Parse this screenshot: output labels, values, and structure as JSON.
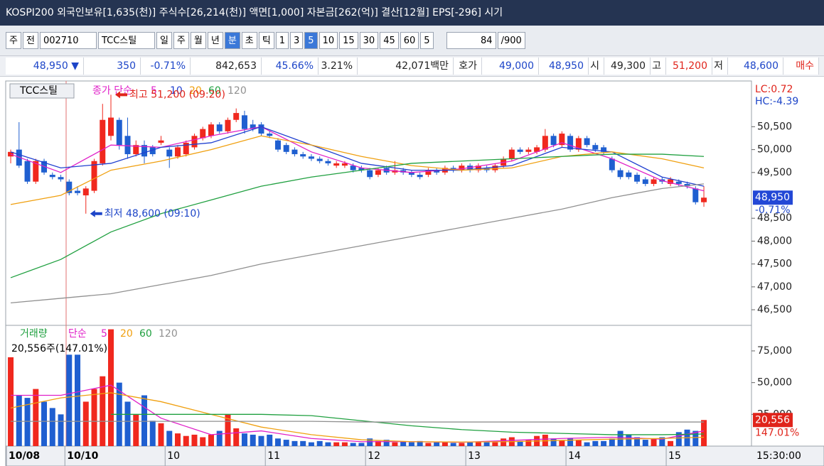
{
  "header": {
    "title": "KOSPI200 외국인보유[1,635(천)] 주식수[26,214(천)] 액면[1,000] 자본금[262(억)] 결산[12월] EPS[-296] 시기",
    "toolbar": [
      "주",
      "전",
      "002710",
      "TCC스틸",
      "일",
      "주",
      "월",
      "년",
      "분",
      "초",
      "틱",
      "1",
      "3",
      "5",
      "10",
      "15",
      "30",
      "45",
      "60",
      "5",
      "84",
      "/900"
    ],
    "toolbar_active": [
      8,
      13
    ],
    "info": [
      {
        "text": "48,950 ▼",
        "color": "#1d45c8"
      },
      {
        "text": "350",
        "color": "#1d45c8"
      },
      {
        "text": "-0.71%",
        "color": "#1d45c8"
      },
      {
        "text": "842,653",
        "color": "#222222"
      },
      {
        "text": "45.66%",
        "color": "#1d45c8"
      },
      {
        "text": "3.21%",
        "color": "#222222"
      },
      {
        "text": "42,071백만",
        "color": "#222222"
      },
      {
        "text": "호가",
        "color": "#222222"
      },
      {
        "text": "49,000",
        "color": "#1d45c8"
      },
      {
        "text": "48,950",
        "color": "#1d45c8"
      },
      {
        "text": "시",
        "color": "#222222"
      },
      {
        "text": "49,300",
        "color": "#222222"
      },
      {
        "text": "고",
        "color": "#222222"
      },
      {
        "text": "51,200",
        "color": "#e0241b"
      },
      {
        "text": "저",
        "color": "#222222"
      },
      {
        "text": "48,600",
        "color": "#1d45c8"
      },
      {
        "text": "매수",
        "color": "#e0241b"
      }
    ]
  },
  "chart_data": {
    "type": "candlestick",
    "title": "TCC스틸",
    "price_legend_label": "종가 단순",
    "volume_title": "거래량",
    "volume_legend_label": "단순",
    "up_color": "#f0281e",
    "down_color": "#1f5fd0",
    "xlim": [
      -0.6,
      88.7
    ],
    "xticks": [
      {
        "value": 0,
        "label": "10/08"
      },
      {
        "value": 7,
        "label": "10/10"
      },
      {
        "value": 19,
        "label": "10"
      },
      {
        "value": 31,
        "label": "11"
      },
      {
        "value": 43,
        "label": "12"
      },
      {
        "value": 55,
        "label": "13"
      },
      {
        "value": 67,
        "label": "14"
      },
      {
        "value": 79,
        "label": "15"
      }
    ],
    "ylim": [
      46190,
      51500
    ],
    "yticks": [
      {
        "value": 50500,
        "label": "50,500"
      },
      {
        "value": 50000,
        "label": "50,000"
      },
      {
        "value": 49500,
        "label": "49,500"
      },
      {
        "value": 48500,
        "label": "48,500"
      },
      {
        "value": 48000,
        "label": "48,000"
      },
      {
        "value": 47500,
        "label": "47,500"
      },
      {
        "value": 47000,
        "label": "47,000"
      },
      {
        "value": 46500,
        "label": "46,500"
      }
    ],
    "candles": [
      [
        49850,
        50000,
        49700,
        49950
      ],
      [
        50000,
        50600,
        49600,
        49650
      ],
      [
        49750,
        49800,
        49250,
        49300
      ],
      [
        49300,
        49800,
        49250,
        49750
      ],
      [
        49750,
        49800,
        49450,
        49500
      ],
      [
        49450,
        49500,
        49350,
        49400
      ],
      [
        49400,
        49450,
        49300,
        49350
      ],
      [
        49300,
        49350,
        49000,
        49050
      ],
      [
        49100,
        49200,
        49000,
        49050
      ],
      [
        49000,
        49200,
        48600,
        49150
      ],
      [
        49100,
        49800,
        49050,
        49750
      ],
      [
        49700,
        51000,
        49650,
        50650
      ],
      [
        50300,
        51200,
        50200,
        50700
      ],
      [
        50650,
        50700,
        50000,
        50100
      ],
      [
        50300,
        50700,
        49800,
        49900
      ],
      [
        49900,
        50200,
        49850,
        50100
      ],
      [
        50100,
        50200,
        49700,
        49850
      ],
      [
        50050,
        50100,
        49850,
        49900
      ],
      [
        50150,
        50300,
        50100,
        50200
      ],
      [
        50000,
        50050,
        49600,
        49850
      ],
      [
        49850,
        50100,
        49800,
        50050
      ],
      [
        49900,
        50200,
        49850,
        50150
      ],
      [
        50050,
        50350,
        50000,
        50300
      ],
      [
        50250,
        50500,
        50200,
        50450
      ],
      [
        50300,
        50600,
        50250,
        50550
      ],
      [
        50550,
        50600,
        50350,
        50400
      ],
      [
        50400,
        50700,
        50350,
        50650
      ],
      [
        50650,
        50900,
        50600,
        50800
      ],
      [
        50750,
        50850,
        50350,
        50450
      ],
      [
        50550,
        50650,
        50400,
        50450
      ],
      [
        50550,
        50600,
        50300,
        50350
      ],
      [
        50350,
        50400,
        50250,
        50300
      ],
      [
        50200,
        50250,
        49950,
        50000
      ],
      [
        50100,
        50150,
        49900,
        49950
      ],
      [
        50000,
        50050,
        49850,
        49900
      ],
      [
        49900,
        49950,
        49800,
        49850
      ],
      [
        49850,
        49900,
        49750,
        49800
      ],
      [
        49800,
        49850,
        49700,
        49750
      ],
      [
        49750,
        49800,
        49650,
        49700
      ],
      [
        49650,
        49750,
        49600,
        49700
      ],
      [
        49650,
        49750,
        49600,
        49700
      ],
      [
        49650,
        49700,
        49500,
        49550
      ],
      [
        49600,
        49650,
        49500,
        49550
      ],
      [
        49550,
        49600,
        49350,
        49400
      ],
      [
        49450,
        49600,
        49400,
        49550
      ],
      [
        49600,
        49650,
        49450,
        49500
      ],
      [
        49500,
        49750,
        49450,
        49550
      ],
      [
        49550,
        49600,
        49450,
        49500
      ],
      [
        49500,
        49550,
        49400,
        49450
      ],
      [
        49450,
        49500,
        49350,
        49400
      ],
      [
        49450,
        49600,
        49400,
        49550
      ],
      [
        49550,
        49600,
        49450,
        49500
      ],
      [
        49500,
        49650,
        49450,
        49600
      ],
      [
        49600,
        49650,
        49500,
        49550
      ],
      [
        49550,
        49700,
        49500,
        49650
      ],
      [
        49650,
        49700,
        49500,
        49550
      ],
      [
        49550,
        49700,
        49500,
        49650
      ],
      [
        49600,
        49650,
        49500,
        49550
      ],
      [
        49550,
        49700,
        49500,
        49650
      ],
      [
        49650,
        49850,
        49600,
        49800
      ],
      [
        49800,
        50050,
        49750,
        50000
      ],
      [
        50000,
        50050,
        49900,
        49950
      ],
      [
        49950,
        50050,
        49900,
        50000
      ],
      [
        49950,
        50100,
        49900,
        50050
      ],
      [
        50000,
        50450,
        49950,
        50300
      ],
      [
        50300,
        50350,
        50050,
        50100
      ],
      [
        50100,
        50400,
        50050,
        50350
      ],
      [
        50300,
        50350,
        49950,
        50000
      ],
      [
        50000,
        50300,
        49950,
        50250
      ],
      [
        50250,
        50300,
        50050,
        50100
      ],
      [
        50100,
        50150,
        49950,
        50000
      ],
      [
        50050,
        50100,
        49900,
        49950
      ],
      [
        49800,
        49850,
        49500,
        49550
      ],
      [
        49550,
        49600,
        49350,
        49400
      ],
      [
        49500,
        49550,
        49350,
        49400
      ],
      [
        49450,
        49500,
        49250,
        49300
      ],
      [
        49350,
        49400,
        49200,
        49250
      ],
      [
        49250,
        49400,
        49200,
        49350
      ],
      [
        49350,
        49400,
        49250,
        49300
      ],
      [
        49250,
        49400,
        49200,
        49350
      ],
      [
        49300,
        49350,
        49200,
        49250
      ],
      [
        49250,
        49300,
        49150,
        49200
      ],
      [
        49150,
        49200,
        48800,
        48850
      ],
      [
        48850,
        49200,
        48750,
        48950
      ]
    ],
    "ma_x": [
      0,
      6,
      12,
      18,
      24,
      30,
      36,
      42,
      48,
      54,
      60,
      66,
      72,
      78,
      83
    ],
    "series": [
      {
        "name": "5",
        "color": "#e020c8",
        "values": [
          49900,
          49500,
          50100,
          50050,
          50300,
          50500,
          49950,
          49600,
          49500,
          49580,
          49750,
          50150,
          49800,
          49320,
          49100
        ]
      },
      {
        "name": "10",
        "color": "#2040d0",
        "values": [
          49950,
          49600,
          49700,
          50050,
          50150,
          50500,
          50100,
          49700,
          49550,
          49550,
          49650,
          50050,
          49950,
          49400,
          49200
        ]
      },
      {
        "name": "20",
        "color": "#f0a010",
        "values": [
          48800,
          49000,
          49550,
          49750,
          50000,
          50300,
          50100,
          49850,
          49650,
          49550,
          49600,
          49850,
          49950,
          49800,
          49600
        ]
      },
      {
        "name": "60",
        "color": "#20a040",
        "values": [
          47200,
          47600,
          48200,
          48600,
          48900,
          49200,
          49400,
          49550,
          49700,
          49750,
          49800,
          49850,
          49900,
          49900,
          49850
        ]
      },
      {
        "name": "120",
        "color": "#909090",
        "values": [
          46650,
          46750,
          46850,
          47050,
          47250,
          47500,
          47700,
          47900,
          48100,
          48300,
          48500,
          48700,
          48950,
          49150,
          49250
        ]
      }
    ],
    "high_label": "최고 51,200 (09:20)",
    "low_label": "최저 48,600 (09:10)",
    "lc_label": "LC:0.72",
    "hc_label": "HC:-4.39",
    "last_price_label": "48,950",
    "last_change_label": "-0.71%",
    "volume": {
      "values": [
        70000,
        40000,
        38000,
        45000,
        35000,
        30000,
        25000,
        72000,
        72000,
        35000,
        45000,
        55000,
        92000,
        50000,
        35000,
        25000,
        40000,
        20000,
        18000,
        12000,
        10000,
        8000,
        9000,
        7000,
        9000,
        12000,
        25000,
        14000,
        10000,
        9000,
        8000,
        9000,
        6000,
        5000,
        4000,
        4000,
        3000,
        4000,
        3000,
        3000,
        3000,
        2500,
        2500,
        6000,
        4000,
        5000,
        3000,
        3500,
        3000,
        4000,
        2500,
        3000,
        3000,
        2500,
        2500,
        3000,
        3500,
        3000,
        3000,
        6000,
        7000,
        4000,
        5000,
        8000,
        9000,
        6000,
        4500,
        6000,
        5000,
        3000,
        4000,
        4000,
        6000,
        12000,
        9000,
        7000,
        5000,
        5500,
        7000,
        4000,
        11000,
        13000,
        12000,
        20556
      ],
      "ylim": [
        0,
        94000
      ],
      "yticks": [
        {
          "value": 75000,
          "label": "75,000"
        },
        {
          "value": 50000,
          "label": "50,000"
        },
        {
          "value": 25000,
          "label": "25,000"
        }
      ],
      "series": [
        {
          "name": "5",
          "color": "#e020c8",
          "values": [
            40000,
            40000,
            48000,
            22000,
            9000,
            12000,
            6000,
            3500,
            3500,
            3000,
            4500,
            6000,
            7000,
            5500,
            12000
          ]
        },
        {
          "name": "20",
          "color": "#f0a010",
          "values": [
            30000,
            38000,
            42000,
            35000,
            25000,
            15000,
            9000,
            5000,
            3500,
            3200,
            3500,
            4500,
            5500,
            6000,
            7000
          ]
        },
        {
          "name": "60",
          "color": "#20a040",
          "values": [
            null,
            null,
            25000,
            25000,
            25000,
            25000,
            24000,
            20000,
            16000,
            13000,
            11000,
            10000,
            9000,
            9000,
            9500
          ]
        },
        {
          "name": "120",
          "color": "#909090",
          "values": [
            19500,
            19500,
            19500,
            19500,
            19500,
            19500,
            19500,
            19000,
            19000,
            19000,
            19000,
            19000,
            19000,
            19000,
            19000
          ]
        }
      ],
      "annotation": "20,556주(147.01%)",
      "last_volume_label": "20,556",
      "last_ratio_label": "147.01%"
    },
    "time_label": "15:30:00"
  }
}
